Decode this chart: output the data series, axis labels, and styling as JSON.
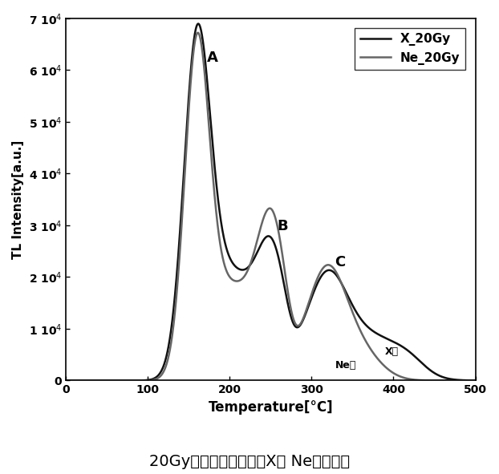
{
  "title": "20Gyグロー曲線によるX線 Ne線の比較",
  "xlabel": "Temperature[°C]",
  "ylabel": "TL Intensity[a.u.]",
  "xlim": [
    0,
    500
  ],
  "ylim": [
    0,
    70000
  ],
  "xticks": [
    0,
    100,
    200,
    300,
    400,
    500
  ],
  "yticks": [
    0,
    10000,
    20000,
    30000,
    40000,
    50000,
    60000,
    70000
  ],
  "legend_entries": [
    "X_20Gy",
    "Ne_20Gy"
  ],
  "x_color": "#111111",
  "ne_color": "#666666",
  "peak_A_label": "A",
  "peak_B_label": "B",
  "peak_C_label": "C",
  "ne_label": "Ne線",
  "x_label": "X線",
  "background_color": "#ffffff",
  "figsize": [
    6.22,
    5.91
  ],
  "dpi": 100
}
